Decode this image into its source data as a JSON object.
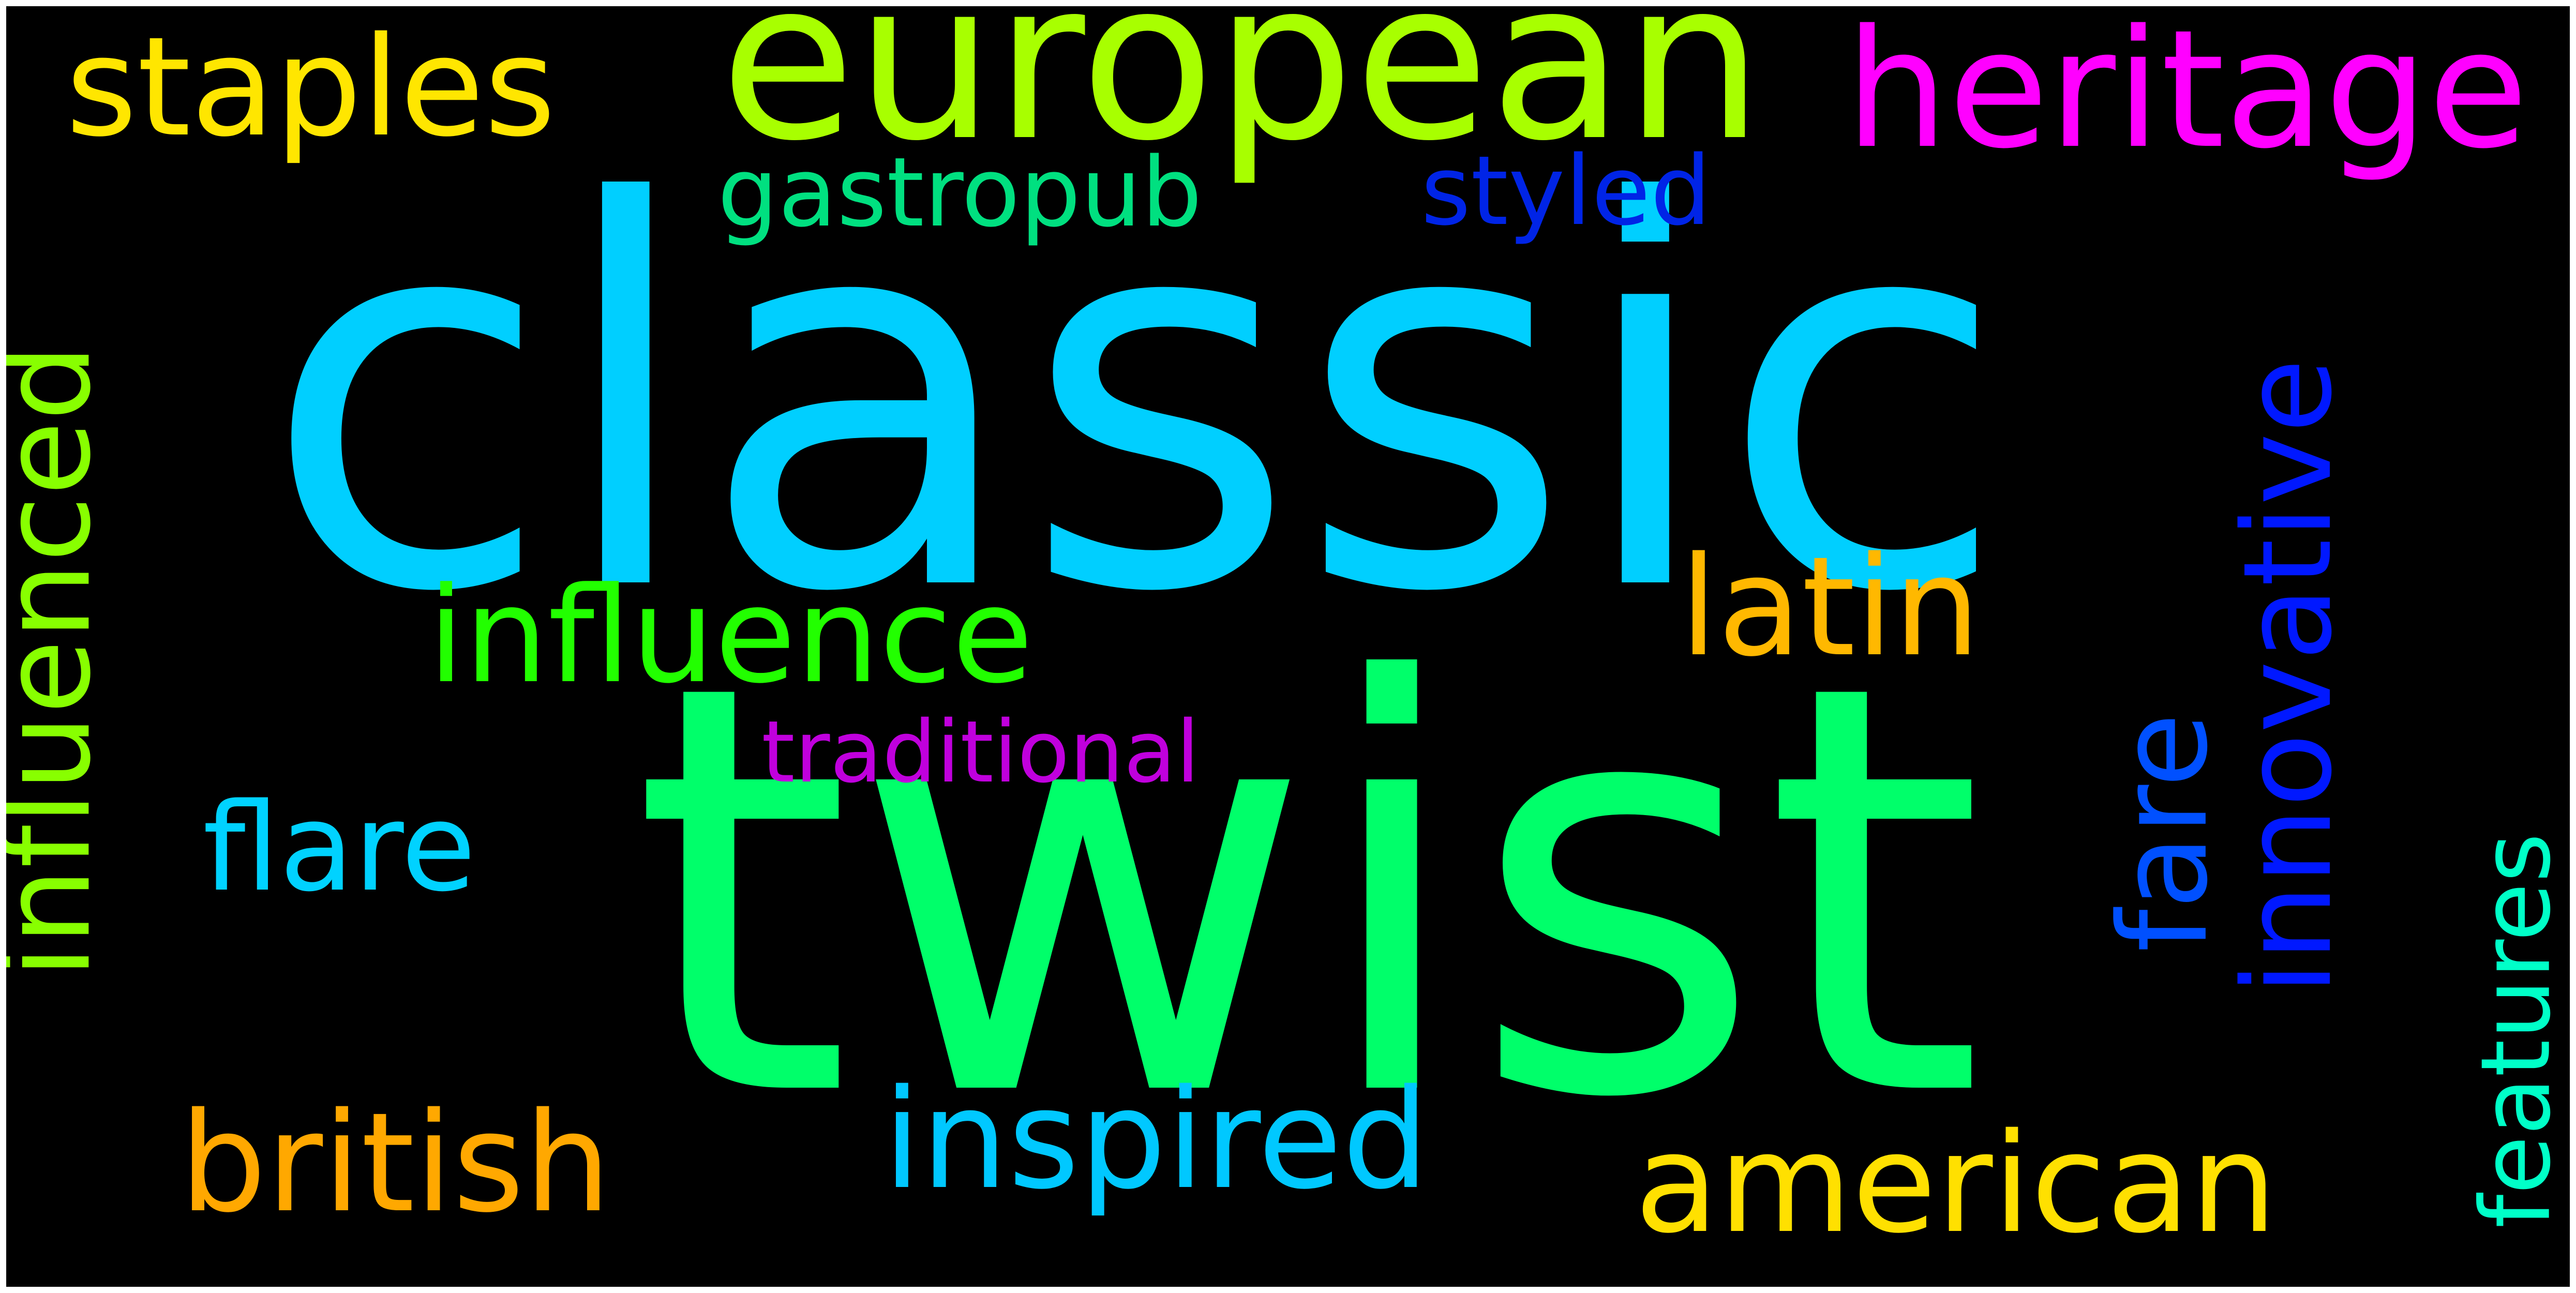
{
  "words": {
    "classic": {
      "text": "classic",
      "color": "#00CFFF"
    },
    "twist": {
      "text": "twist",
      "color": "#00FF6A"
    },
    "european": {
      "text": "european",
      "color": "#A8FF00"
    },
    "heritage": {
      "text": "heritage",
      "color": "#FF00FF"
    },
    "staples": {
      "text": "staples",
      "color": "#FFE600"
    },
    "gastropub": {
      "text": "gastropub",
      "color": "#00E080"
    },
    "styled": {
      "text": "styled",
      "color": "#0024E6"
    },
    "influenced": {
      "text": "influenced",
      "color": "#88FF00"
    },
    "innovative": {
      "text": "innovative",
      "color": "#0018FF"
    },
    "influence": {
      "text": "influence",
      "color": "#22FF00"
    },
    "latin": {
      "text": "latin",
      "color": "#FFB800"
    },
    "fare": {
      "text": "fare",
      "color": "#0050FF"
    },
    "traditional": {
      "text": "traditional",
      "color": "#C000DD"
    },
    "flare": {
      "text": "flare",
      "color": "#00D2FF"
    },
    "features": {
      "text": "features",
      "color": "#00FFC8"
    },
    "british": {
      "text": "british",
      "color": "#FFA800"
    },
    "inspired": {
      "text": "inspired",
      "color": "#00C8FF"
    },
    "american": {
      "text": "american",
      "color": "#FFE000"
    }
  }
}
